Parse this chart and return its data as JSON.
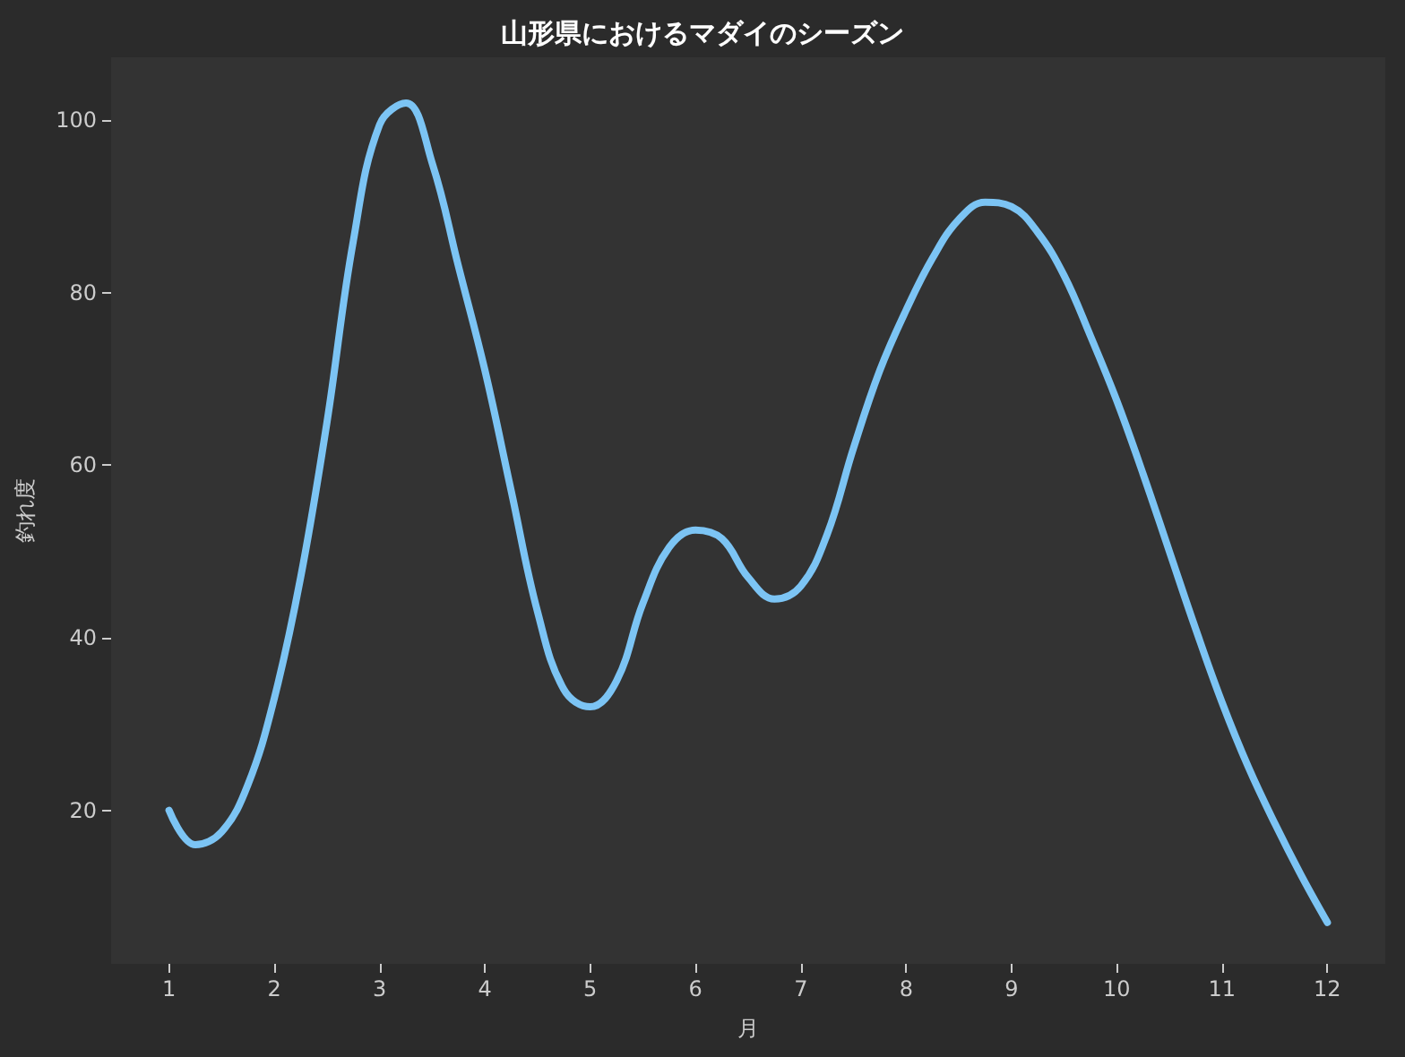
{
  "chart_data": {
    "type": "line",
    "title": "山形県におけるマダイのシーズン",
    "xlabel": "月",
    "ylabel": "釣れ度",
    "xlim": [
      0.45,
      12.55
    ],
    "xticks": [
      1,
      2,
      3,
      4,
      5,
      6,
      7,
      8,
      9,
      10,
      11,
      12
    ],
    "ylim": [
      2.2,
      107.3
    ],
    "yticks": [
      20,
      40,
      60,
      80,
      100
    ],
    "grid": false,
    "marker": "none",
    "line_style": "solid",
    "series": [
      {
        "color": "#7cc4f4",
        "x": [
          1,
          1.25,
          1.5,
          1.75,
          2,
          2.25,
          2.5,
          2.75,
          3,
          3.25,
          3.5,
          3.75,
          4,
          4.25,
          4.5,
          4.75,
          5,
          5.25,
          5.5,
          5.75,
          6,
          6.25,
          6.5,
          6.75,
          7,
          7.25,
          7.5,
          7.75,
          8,
          8.25,
          8.5,
          8.75,
          9,
          9.25,
          9.5,
          9.75,
          10,
          10.25,
          10.5,
          10.75,
          11,
          11.25,
          11.5,
          11.75,
          12
        ],
        "values": [
          20,
          16,
          17.5,
          23,
          33,
          47,
          65,
          86,
          99.5,
          102,
          95,
          83,
          71,
          57,
          43,
          34,
          32,
          35,
          44,
          50.5,
          52.5,
          51.5,
          47,
          44.5,
          46,
          52,
          62,
          71,
          78,
          84,
          88.5,
          90.5,
          90,
          87,
          82,
          75,
          67.5,
          59,
          50,
          41,
          32.5,
          25,
          18.5,
          12.5,
          7
        ]
      }
    ]
  }
}
